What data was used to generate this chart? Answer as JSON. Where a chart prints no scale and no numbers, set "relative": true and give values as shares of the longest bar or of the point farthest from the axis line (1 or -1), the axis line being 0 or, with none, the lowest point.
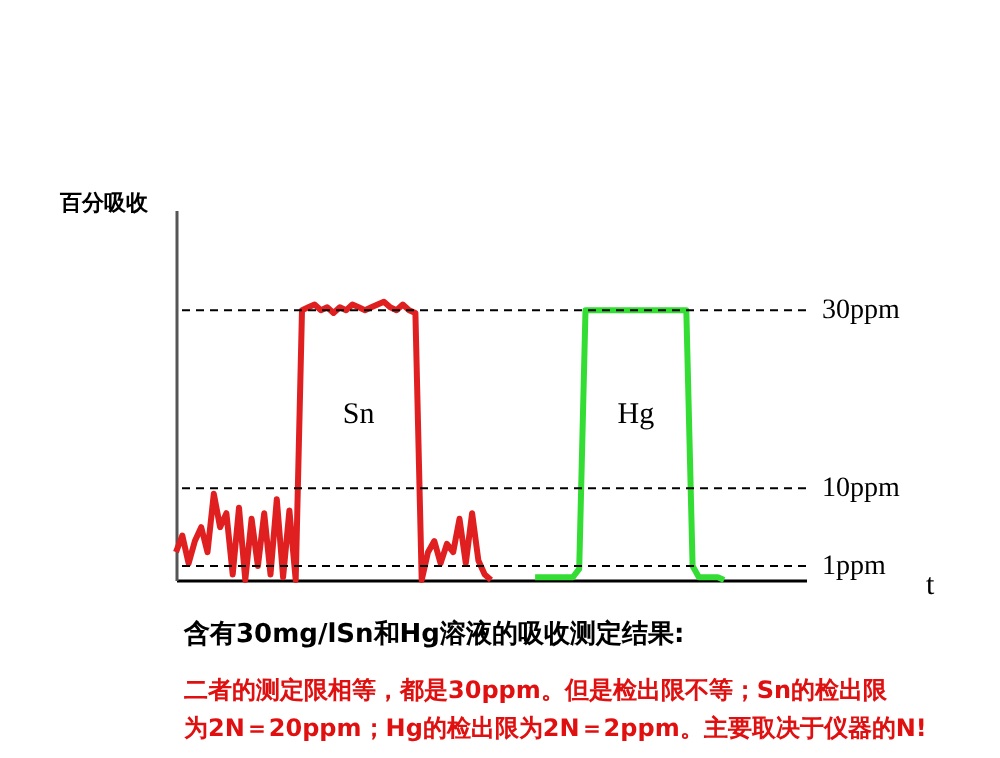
{
  "chart_data": {
    "type": "line",
    "relative": true,
    "xlabel": "t",
    "ylabel": "百分吸收",
    "categories": [
      null,
      null,
      null,
      null,
      null,
      null,
      null,
      null,
      null,
      null,
      null,
      null,
      null,
      null,
      null,
      null,
      null,
      null,
      null,
      null,
      null,
      null,
      null,
      null,
      null,
      null,
      null,
      null,
      null,
      null,
      null,
      null,
      null,
      null,
      null,
      null,
      null,
      null,
      null,
      null,
      null,
      null,
      null,
      null,
      null,
      null,
      null,
      null,
      null,
      null,
      null,
      null,
      null,
      null,
      null,
      null,
      null,
      null,
      null,
      null,
      null,
      null,
      null,
      null,
      null,
      null,
      null,
      null,
      null,
      null,
      null,
      null,
      null,
      null,
      null,
      null,
      null,
      null,
      null,
      null,
      null,
      null,
      null,
      null,
      null,
      null,
      null,
      null,
      null,
      null,
      null,
      null,
      null,
      null,
      null,
      null,
      null,
      null,
      null,
      null,
      null
    ],
    "series": [
      {
        "name": "Sn",
        "color": "#e02020",
        "values": [
          0.1,
          0.16,
          0.06,
          0.14,
          0.19,
          0.1,
          0.31,
          0.19,
          0.24,
          0.02,
          0.26,
          0,
          0.22,
          0.05,
          0.24,
          0.02,
          0.29,
          0.01,
          0.25,
          0,
          0.97,
          0.98,
          0.99,
          0.97,
          0.98,
          0.96,
          0.98,
          0.97,
          0.99,
          0.98,
          0.97,
          0.98,
          0.99,
          1.0,
          0.98,
          0.97,
          0.99,
          0.97,
          0.96,
          0,
          0.1,
          0.14,
          0.06,
          0.13,
          0.1,
          0.22,
          0.06,
          0.24,
          0.07,
          0.02,
          0,
          null,
          null,
          null,
          null,
          null,
          null,
          null,
          null,
          null,
          null,
          null,
          null,
          null,
          null,
          null,
          null,
          null,
          null,
          null,
          null,
          null,
          null,
          null,
          null,
          null,
          null,
          null,
          null,
          null,
          null,
          null,
          null,
          null,
          null,
          null,
          null,
          null,
          null,
          null,
          null,
          null,
          null,
          null,
          null,
          null,
          null,
          null,
          null,
          null,
          null
        ]
      },
      {
        "name": "Hg",
        "color": "#33dd33",
        "values": [
          null,
          null,
          null,
          null,
          null,
          null,
          null,
          null,
          null,
          null,
          null,
          null,
          null,
          null,
          null,
          null,
          null,
          null,
          null,
          null,
          null,
          null,
          null,
          null,
          null,
          null,
          null,
          null,
          null,
          null,
          null,
          null,
          null,
          null,
          null,
          null,
          null,
          null,
          null,
          null,
          null,
          null,
          null,
          null,
          null,
          null,
          null,
          null,
          null,
          null,
          null,
          null,
          null,
          null,
          null,
          null,
          null,
          0.01,
          0.01,
          0.01,
          0.01,
          0.01,
          0.01,
          0.01,
          0.04,
          0.97,
          0.97,
          0.97,
          0.97,
          0.97,
          0.97,
          0.97,
          0.97,
          0.97,
          0.97,
          0.97,
          0.97,
          0.97,
          0.97,
          0.97,
          0.97,
          0.97,
          0.05,
          0.01,
          0.01,
          0.01,
          0.01,
          0,
          null,
          null,
          null,
          null,
          null,
          null,
          null,
          null,
          null,
          null,
          null,
          null,
          null
        ]
      }
    ],
    "ref_lines": [
      {
        "axis": "y",
        "value": 0.97,
        "label": "30ppm",
        "line_style": "dashed"
      },
      {
        "axis": "y",
        "value": 0.33,
        "label": "10ppm",
        "line_style": "dashed"
      },
      {
        "axis": "y",
        "value": 0.05,
        "label": "1ppm",
        "line_style": "dashed"
      }
    ],
    "annotations": [
      "含有30mg/lSn和Hg溶液的吸收测定结果:",
      "二者的测定限相等，都是30ppm。但是检出限不等；Sn的检出限",
      "为2N＝20ppm；Hg的检出限为2N＝2ppm。主要取决于仪器的N!"
    ]
  }
}
